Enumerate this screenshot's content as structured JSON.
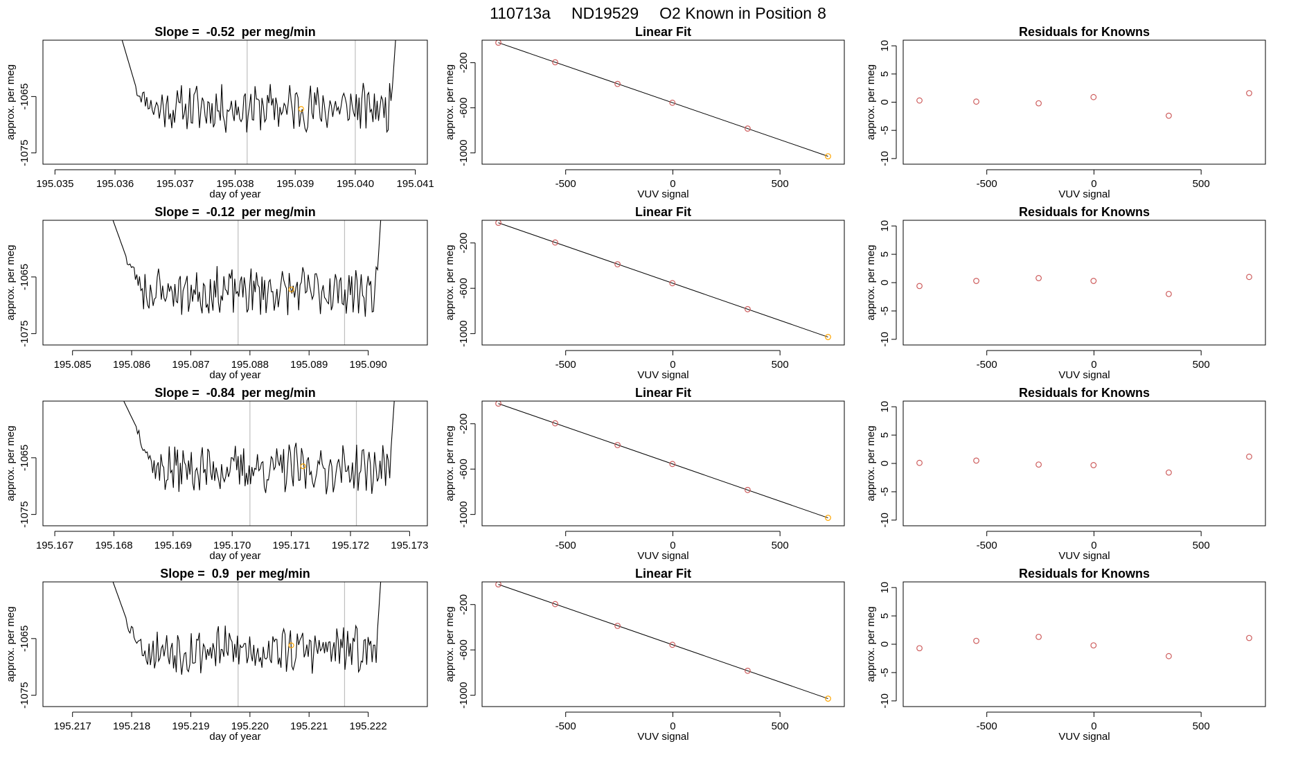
{
  "figure": {
    "run_label": "110713a",
    "tank_label": "ND19529",
    "position_label": "O2 Known in Position",
    "position_number": "8"
  },
  "chart_data": [
    {
      "type": "line",
      "panel": "trace",
      "row": 0,
      "title_prefix": "Slope =",
      "slope": "-0.52",
      "title_suffix": "per meg/min",
      "xlabel": "day of year",
      "ylabel": "approx. per meg",
      "xlim": [
        195.0348,
        195.0412
      ],
      "ylim": [
        -1077,
        -1055
      ],
      "xticks": [
        "195.035",
        "195.036",
        "195.037",
        "195.038",
        "195.039",
        "195.040",
        "195.041"
      ],
      "yticks": [
        -1065,
        -1075
      ],
      "ytick_labels": [
        "-1065",
        "-1075"
      ],
      "vlines": [
        195.0382,
        195.04
      ],
      "x_start": 195.03609,
      "x_end": 195.04071,
      "start_value": -1054,
      "dip_value": -1064,
      "end_value": -1054,
      "baseline": -1067,
      "seed": 11,
      "marker": {
        "x": 195.0391,
        "y": -1067.2,
        "color": "#ffa500"
      },
      "line_color": "#000000",
      "vline_color": "#bebebe"
    },
    {
      "type": "scatter",
      "panel": "fit",
      "row": 0,
      "title": "Linear Fit",
      "xlabel": "VUV signal",
      "ylabel": "approx. per meg",
      "xlim": [
        -890,
        800
      ],
      "ylim": [
        -1100,
        0
      ],
      "xticks": [
        -500,
        0,
        500
      ],
      "xtick_labels": [
        "-500",
        "0",
        "500"
      ],
      "yticks": [
        -200,
        -600,
        -1000
      ],
      "ytick_labels": [
        "-200",
        "-600",
        "-1000"
      ],
      "x": [
        -814,
        -549,
        -258,
        -2,
        349,
        724
      ],
      "y": [
        -22,
        -196,
        -388,
        -555,
        -784,
        -1030
      ],
      "fit_line": {
        "x": [
          -814,
          724
        ],
        "y": [
          -22,
          -1030
        ]
      },
      "point_colors": [
        "#cd5c5c",
        "#cd5c5c",
        "#cd5c5c",
        "#cd5c5c",
        "#cd5c5c",
        "#ffa500"
      ]
    },
    {
      "type": "scatter",
      "panel": "residuals",
      "row": 0,
      "title": "Residuals for Knowns",
      "xlabel": "VUV signal",
      "ylabel": "approx. per meg",
      "xlim": [
        -890,
        800
      ],
      "ylim": [
        -11,
        11
      ],
      "xticks": [
        -500,
        0,
        500
      ],
      "xtick_labels": [
        "-500",
        "0",
        "500"
      ],
      "yticks": [
        10,
        5,
        0,
        -5,
        -10
      ],
      "ytick_labels": [
        "10",
        "5",
        "0",
        "-5",
        "-10"
      ],
      "x": [
        -814,
        -549,
        -258,
        -2,
        349,
        724
      ],
      "y": [
        0.3,
        0.1,
        -0.2,
        0.9,
        -2.4,
        1.6
      ],
      "point_color": "#cd5c5c"
    },
    {
      "type": "line",
      "panel": "trace",
      "row": 1,
      "title_prefix": "Slope =",
      "slope": "-0.12",
      "title_suffix": "per meg/min",
      "xlabel": "day of year",
      "ylabel": "approx. per meg",
      "xlim": [
        195.0845,
        195.091
      ],
      "ylim": [
        -1077,
        -1055
      ],
      "xticks": [
        "195.085",
        "195.086",
        "195.087",
        "195.088",
        "195.089",
        "195.090"
      ],
      "yticks": [
        -1065,
        -1075
      ],
      "ytick_labels": [
        "-1065",
        "-1075"
      ],
      "vlines": [
        195.0878,
        195.0896
      ],
      "x_start": 195.08565,
      "x_end": 195.09025,
      "start_value": -1054,
      "dip_value": -1062,
      "end_value": -1054,
      "baseline": -1067.5,
      "seed": 23,
      "marker": {
        "x": 195.0887,
        "y": -1067.2,
        "color": "#ffa500"
      },
      "line_color": "#000000",
      "vline_color": "#bebebe"
    },
    {
      "type": "scatter",
      "panel": "fit",
      "row": 1,
      "title": "Linear Fit",
      "xlabel": "VUV signal",
      "ylabel": "approx. per meg",
      "xlim": [
        -890,
        800
      ],
      "ylim": [
        -1100,
        0
      ],
      "xticks": [
        -500,
        0,
        500
      ],
      "xtick_labels": [
        "-500",
        "0",
        "500"
      ],
      "yticks": [
        -200,
        -600,
        -1000
      ],
      "ytick_labels": [
        "-200",
        "-600",
        "-1000"
      ],
      "x": [
        -814,
        -549,
        -258,
        -2,
        349,
        724
      ],
      "y": [
        -22,
        -196,
        -388,
        -555,
        -784,
        -1030
      ],
      "fit_line": {
        "x": [
          -814,
          724
        ],
        "y": [
          -22,
          -1030
        ]
      },
      "point_colors": [
        "#cd5c5c",
        "#cd5c5c",
        "#cd5c5c",
        "#cd5c5c",
        "#cd5c5c",
        "#ffa500"
      ]
    },
    {
      "type": "scatter",
      "panel": "residuals",
      "row": 1,
      "title": "Residuals for Knowns",
      "xlabel": "VUV signal",
      "ylabel": "approx. per meg",
      "xlim": [
        -890,
        800
      ],
      "ylim": [
        -11,
        11
      ],
      "xticks": [
        -500,
        0,
        500
      ],
      "xtick_labels": [
        "-500",
        "0",
        "500"
      ],
      "yticks": [
        10,
        5,
        0,
        -5,
        -10
      ],
      "ytick_labels": [
        "10",
        "5",
        "0",
        "-5",
        "-10"
      ],
      "x": [
        -814,
        -549,
        -258,
        -2,
        349,
        724
      ],
      "y": [
        -0.6,
        0.3,
        0.8,
        0.3,
        -2.0,
        1.0
      ],
      "point_color": "#cd5c5c"
    },
    {
      "type": "line",
      "panel": "trace",
      "row": 2,
      "title_prefix": "Slope =",
      "slope": "-0.84",
      "title_suffix": "per meg/min",
      "xlabel": "day of year",
      "ylabel": "approx. per meg",
      "xlim": [
        195.1668,
        195.1733
      ],
      "ylim": [
        -1077,
        -1055
      ],
      "xticks": [
        "195.167",
        "195.168",
        "195.169",
        "195.170",
        "195.171",
        "195.172",
        "195.173"
      ],
      "yticks": [
        -1065,
        -1075
      ],
      "ytick_labels": [
        "-1065",
        "-1075"
      ],
      "vlines": [
        195.1703,
        195.1721
      ],
      "x_start": 195.16812,
      "x_end": 195.17278,
      "start_value": -1054,
      "dip_value": -1060,
      "end_value": -1054,
      "baseline": -1067,
      "seed": 37,
      "marker": {
        "x": 195.1712,
        "y": -1066.5,
        "color": "#ffa500"
      },
      "line_color": "#000000",
      "vline_color": "#bebebe"
    },
    {
      "type": "scatter",
      "panel": "fit",
      "row": 2,
      "title": "Linear Fit",
      "xlabel": "VUV signal",
      "ylabel": "approx. per meg",
      "xlim": [
        -890,
        800
      ],
      "ylim": [
        -1100,
        0
      ],
      "xticks": [
        -500,
        0,
        500
      ],
      "xtick_labels": [
        "-500",
        "0",
        "500"
      ],
      "yticks": [
        -200,
        -600,
        -1000
      ],
      "ytick_labels": [
        "-200",
        "-600",
        "-1000"
      ],
      "x": [
        -814,
        -549,
        -258,
        -2,
        349,
        724
      ],
      "y": [
        -22,
        -196,
        -388,
        -555,
        -784,
        -1030
      ],
      "fit_line": {
        "x": [
          -814,
          724
        ],
        "y": [
          -22,
          -1030
        ]
      },
      "point_colors": [
        "#cd5c5c",
        "#cd5c5c",
        "#cd5c5c",
        "#cd5c5c",
        "#cd5c5c",
        "#ffa500"
      ]
    },
    {
      "type": "scatter",
      "panel": "residuals",
      "row": 2,
      "title": "Residuals for Knowns",
      "xlabel": "VUV signal",
      "ylabel": "approx. per meg",
      "xlim": [
        -890,
        800
      ],
      "ylim": [
        -11,
        11
      ],
      "xticks": [
        -500,
        0,
        500
      ],
      "xtick_labels": [
        "-500",
        "0",
        "500"
      ],
      "yticks": [
        10,
        5,
        0,
        -5,
        -10
      ],
      "ytick_labels": [
        "10",
        "5",
        "0",
        "-5",
        "-10"
      ],
      "x": [
        -814,
        -549,
        -258,
        -2,
        349,
        724
      ],
      "y": [
        0.1,
        0.5,
        -0.2,
        -0.3,
        -1.6,
        1.2
      ],
      "point_color": "#cd5c5c"
    },
    {
      "type": "line",
      "panel": "trace",
      "row": 3,
      "title_prefix": "Slope =",
      "slope": "0.9",
      "title_suffix": "per meg/min",
      "xlabel": "day of year",
      "ylabel": "approx. per meg",
      "xlim": [
        195.2165,
        195.223
      ],
      "ylim": [
        -1077,
        -1055
      ],
      "xticks": [
        "195.217",
        "195.218",
        "195.219",
        "195.220",
        "195.221",
        "195.222"
      ],
      "yticks": [
        -1065,
        -1075
      ],
      "ytick_labels": [
        "-1065",
        "-1075"
      ],
      "vlines": [
        195.2198,
        195.2216
      ],
      "x_start": 195.21765,
      "x_end": 195.22225,
      "start_value": -1054,
      "dip_value": -1062,
      "end_value": -1054,
      "baseline": -1067,
      "seed": 53,
      "marker": {
        "x": 195.2207,
        "y": -1066.2,
        "color": "#ffa500"
      },
      "line_color": "#000000",
      "vline_color": "#bebebe"
    },
    {
      "type": "scatter",
      "panel": "fit",
      "row": 3,
      "title": "Linear Fit",
      "xlabel": "VUV signal",
      "ylabel": "approx. per meg",
      "xlim": [
        -890,
        800
      ],
      "ylim": [
        -1100,
        0
      ],
      "xticks": [
        -500,
        0,
        500
      ],
      "xtick_labels": [
        "-500",
        "0",
        "500"
      ],
      "yticks": [
        -200,
        -600,
        -1000
      ],
      "ytick_labels": [
        "-200",
        "-600",
        "-1000"
      ],
      "x": [
        -814,
        -549,
        -258,
        -2,
        349,
        724
      ],
      "y": [
        -22,
        -196,
        -388,
        -555,
        -784,
        -1030
      ],
      "fit_line": {
        "x": [
          -814,
          724
        ],
        "y": [
          -22,
          -1030
        ]
      },
      "point_colors": [
        "#cd5c5c",
        "#cd5c5c",
        "#cd5c5c",
        "#cd5c5c",
        "#cd5c5c",
        "#ffa500"
      ]
    },
    {
      "type": "scatter",
      "panel": "residuals",
      "row": 3,
      "title": "Residuals for Knowns",
      "xlabel": "VUV signal",
      "ylabel": "approx. per meg",
      "xlim": [
        -890,
        800
      ],
      "ylim": [
        -11,
        11
      ],
      "xticks": [
        -500,
        0,
        500
      ],
      "xtick_labels": [
        "-500",
        "0",
        "500"
      ],
      "yticks": [
        10,
        5,
        0,
        -5,
        -10
      ],
      "ytick_labels": [
        "10",
        "5",
        "0",
        "-5",
        "-10"
      ],
      "x": [
        -814,
        -549,
        -258,
        -2,
        349,
        724
      ],
      "y": [
        -0.7,
        0.6,
        1.3,
        -0.2,
        -2.1,
        1.1
      ],
      "point_color": "#cd5c5c"
    }
  ]
}
